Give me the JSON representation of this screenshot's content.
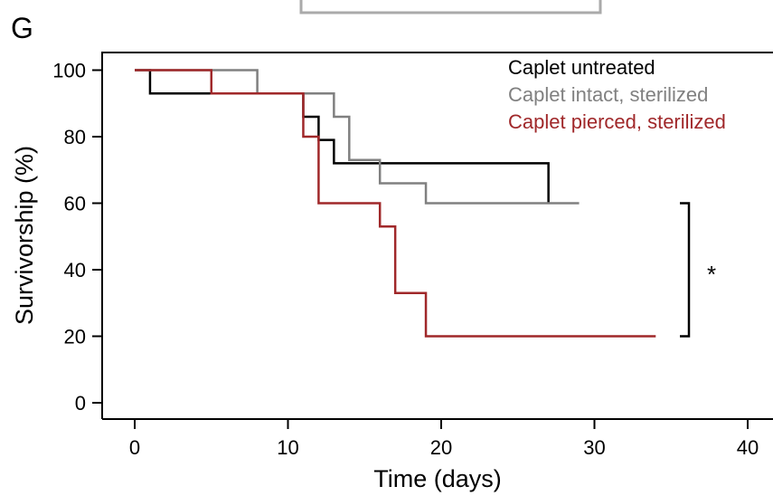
{
  "panel_label": "G",
  "chart_data": {
    "type": "line",
    "step": true,
    "title": "",
    "xlabel": "Time (days)",
    "ylabel": "Survivorship (%)",
    "xlim": [
      -2,
      42
    ],
    "ylim": [
      -5,
      105
    ],
    "xticks": [
      0,
      10,
      20,
      30,
      40
    ],
    "yticks": [
      0,
      20,
      40,
      60,
      80,
      100
    ],
    "grid": false,
    "legend_position": "top-right",
    "series": [
      {
        "name": "Caplet untreated",
        "color": "#000000",
        "x": [
          0,
          1,
          11,
          12,
          13,
          27,
          27
        ],
        "y": [
          100,
          93,
          86,
          79,
          72,
          60,
          60
        ]
      },
      {
        "name": "Caplet intact, sterilized",
        "color": "#808080",
        "x": [
          0,
          8,
          13,
          14,
          16,
          19,
          29
        ],
        "y": [
          100,
          93,
          86,
          73,
          66,
          60,
          60
        ]
      },
      {
        "name": "Caplet pierced, sterilized",
        "color": "#a0282a",
        "x": [
          0,
          5,
          11,
          12,
          16,
          17,
          19,
          34
        ],
        "y": [
          100,
          93,
          80,
          60,
          53,
          33,
          20,
          20
        ]
      }
    ],
    "annotations": [
      {
        "text": "*",
        "bracket_y": [
          20,
          60
        ]
      }
    ]
  }
}
